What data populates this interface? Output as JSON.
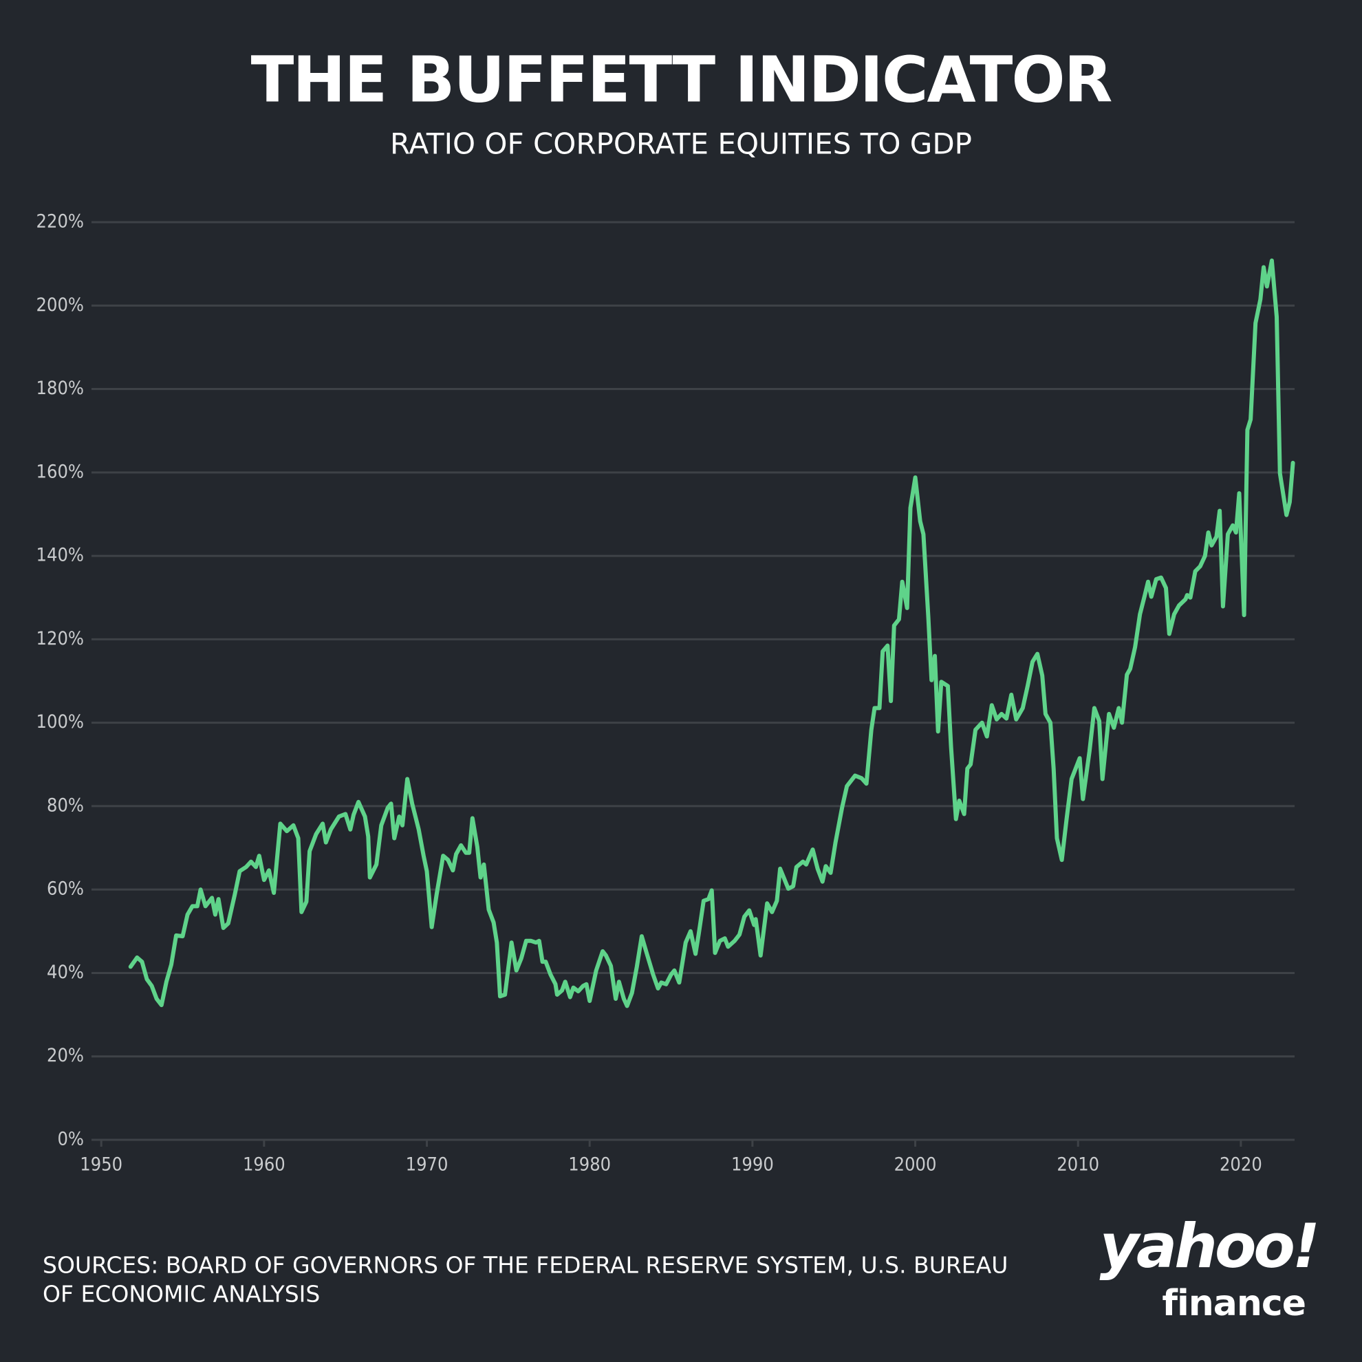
{
  "chart_data": {
    "type": "line",
    "title": "THE BUFFETT INDICATOR",
    "subtitle": "RATIO OF CORPORATE EQUITIES TO GDP",
    "source": [
      "SOURCES: BOARD OF GOVERNORS OF THE FEDERAL RESERVE SYSTEM, U.S. BUREAU",
      "OF ECONOMIC ANALYSIS"
    ],
    "logo": {
      "brand": "yahoo!",
      "product": "finance"
    },
    "xlim": [
      1949.4,
      2023.3
    ],
    "xticks": [
      1950,
      1960,
      1970,
      1980,
      1990,
      2000,
      2010,
      2020
    ],
    "ylim": [
      0,
      220
    ],
    "yticks": [
      {
        "value": 0,
        "label": "0%"
      },
      {
        "value": 20,
        "label": "20%"
      },
      {
        "value": 40,
        "label": "40%"
      },
      {
        "value": 60,
        "label": "60%"
      },
      {
        "value": 80,
        "label": "80%"
      },
      {
        "value": 100,
        "label": "100%"
      },
      {
        "value": 120,
        "label": "120%"
      },
      {
        "value": 140,
        "label": "140%"
      },
      {
        "value": 160,
        "label": "160%"
      },
      {
        "value": 180,
        "label": "180%"
      },
      {
        "value": 200,
        "label": "200%"
      },
      {
        "value": 220,
        "label": "220%"
      }
    ],
    "grid": true,
    "background": "#23272d",
    "grid_color": "#3e4247",
    "x": [
      1951.8,
      1952.2,
      1952.5,
      1952.8,
      1953.1,
      1953.4,
      1953.7,
      1954,
      1954.3,
      1954.6,
      1955,
      1955.3,
      1955.6,
      1955.9,
      1956.1,
      1956.4,
      1956.8,
      1957,
      1957.2,
      1957.5,
      1957.8,
      1958.2,
      1958.5,
      1958.9,
      1959.2,
      1959.5,
      1959.7,
      1960,
      1960.3,
      1960.6,
      1961,
      1961.4,
      1961.8,
      1962.1,
      1962.3,
      1962.6,
      1962.8,
      1963.2,
      1963.6,
      1963.8,
      1964.1,
      1964.6,
      1965,
      1965.3,
      1965.5,
      1965.8,
      1966.2,
      1966.4,
      1966.5,
      1966.9,
      1967.2,
      1967.6,
      1967.8,
      1968,
      1968.3,
      1968.5,
      1968.8,
      1969.1,
      1969.5,
      1969.8,
      1970,
      1970.3,
      1970.6,
      1971,
      1971.3,
      1971.6,
      1971.8,
      1972.1,
      1972.4,
      1972.6,
      1972.8,
      1973.1,
      1973.3,
      1973.5,
      1973.8,
      1974.1,
      1974.3,
      1974.5,
      1974.8,
      1975.2,
      1975.5,
      1975.8,
      1976.1,
      1976.4,
      1976.7,
      1976.9,
      1977.1,
      1977.3,
      1977.6,
      1977.9,
      1978,
      1978.3,
      1978.5,
      1978.8,
      1979,
      1979.3,
      1979.6,
      1979.8,
      1980,
      1980.4,
      1980.8,
      1981,
      1981.3,
      1981.6,
      1981.8,
      1982.1,
      1982.3,
      1982.6,
      1982.9,
      1983.2,
      1983.5,
      1983.9,
      1984.2,
      1984.4,
      1984.7,
      1985,
      1985.2,
      1985.5,
      1985.9,
      1986.2,
      1986.5,
      1986.7,
      1987,
      1987.3,
      1987.5,
      1987.7,
      1988,
      1988.3,
      1988.5,
      1988.9,
      1989.2,
      1989.5,
      1989.8,
      1990.1,
      1990.2,
      1990.5,
      1990.9,
      1991.2,
      1991.5,
      1991.7,
      1992.2,
      1992.5,
      1992.7,
      1993.1,
      1993.3,
      1993.7,
      1994,
      1994.3,
      1994.5,
      1994.8,
      1995.1,
      1995.5,
      1995.8,
      1996.3,
      1996.7,
      1997,
      1997.3,
      1997.5,
      1997.8,
      1998,
      1998.3,
      1998.5,
      1998.7,
      1999,
      1999.2,
      1999.5,
      1999.7,
      2000,
      2000.3,
      2000.5,
      2000.8,
      2001,
      2001.2,
      2001.4,
      2001.6,
      2002,
      2002.2,
      2002.5,
      2002.7,
      2003,
      2003.2,
      2003.4,
      2003.7,
      2004.1,
      2004.4,
      2004.7,
      2005,
      2005.3,
      2005.6,
      2005.9,
      2006.2,
      2006.6,
      2006.9,
      2007.2,
      2007.5,
      2007.8,
      2008,
      2008.3,
      2008.5,
      2008.7,
      2009,
      2009.3,
      2009.6,
      2010.1,
      2010.3,
      2010.7,
      2011,
      2011.3,
      2011.5,
      2011.9,
      2012.2,
      2012.5,
      2012.7,
      2013,
      2013.2,
      2013.5,
      2013.8,
      2014.1,
      2014.3,
      2014.5,
      2014.8,
      2015.1,
      2015.4,
      2015.6,
      2015.9,
      2016.2,
      2016.6,
      2016.7,
      2016.9,
      2017.2,
      2017.5,
      2017.8,
      2018,
      2018.2,
      2018.5,
      2018.7,
      2018.9,
      2019.2,
      2019.5,
      2019.7,
      2019.9,
      2020.2,
      2020.4,
      2020.6,
      2020.9,
      2021.2,
      2021.4,
      2021.6,
      2021.9,
      2022.2,
      2022.4,
      2022.8,
      2023,
      2023.2
    ],
    "series": [
      {
        "name": "Ratio of corporate equities to GDP",
        "color": "#5fd38a",
        "values": [
          41.5,
          43.7,
          42.7,
          38.5,
          36.9,
          33.8,
          32.3,
          37.9,
          42,
          49,
          48.8,
          54,
          56,
          56,
          60,
          56,
          58,
          54,
          57.7,
          50.8,
          51.9,
          58.8,
          64.4,
          65.4,
          66.7,
          65.4,
          68.1,
          62.3,
          64.6,
          59.2,
          75.8,
          74,
          75.4,
          72.3,
          54.6,
          57.1,
          69.2,
          73.3,
          75.8,
          71.3,
          74.4,
          77.5,
          78.1,
          74.4,
          77.9,
          81,
          77.5,
          72.7,
          62.9,
          66,
          75.4,
          79.6,
          80.6,
          72.3,
          77.5,
          75.4,
          86.5,
          80.6,
          74.4,
          68.1,
          64.4,
          51,
          58.8,
          68.1,
          67.1,
          64.6,
          68.5,
          70.6,
          68.8,
          68.8,
          77.1,
          70.2,
          62.9,
          66,
          55.2,
          52.1,
          47.3,
          34.4,
          34.8,
          47.3,
          40.6,
          43.5,
          47.7,
          47.7,
          47.3,
          47.7,
          42.7,
          42.7,
          39.6,
          37.3,
          34.8,
          35.8,
          37.9,
          34.2,
          36.5,
          35.6,
          36.9,
          37.3,
          33.3,
          40.6,
          45.2,
          44.2,
          41.7,
          33.8,
          37.9,
          33.8,
          32.1,
          35.2,
          41.5,
          48.8,
          44.8,
          39.6,
          36.3,
          37.7,
          37.3,
          39.6,
          40.6,
          37.7,
          47.3,
          50,
          44.6,
          49.4,
          57.3,
          57.7,
          59.8,
          44.8,
          47.7,
          48.3,
          46.3,
          47.7,
          49.2,
          53.5,
          55,
          51.5,
          52.9,
          44.2,
          56.7,
          54.6,
          57.3,
          65,
          60.2,
          60.8,
          65.4,
          66.7,
          66,
          69.6,
          65,
          61.9,
          65.6,
          64,
          71.3,
          79.6,
          84.8,
          87.3,
          86.7,
          85.4,
          98.3,
          103.5,
          103.5,
          117.1,
          118.5,
          105.2,
          123.3,
          124.8,
          133.8,
          127.5,
          151.5,
          158.8,
          148.3,
          145.2,
          125.4,
          110.2,
          116,
          97.9,
          109.8,
          108.8,
          94.2,
          76.9,
          81.3,
          78.1,
          89,
          90,
          98.3,
          100,
          96.7,
          104.2,
          100.8,
          102.1,
          101,
          106.7,
          100.8,
          103.5,
          108.8,
          114.6,
          116.5,
          111.3,
          102.1,
          100,
          89,
          72.3,
          67.1,
          77.1,
          86.5,
          91.5,
          81.7,
          93.1,
          103.5,
          100.4,
          86.5,
          102.1,
          98.8,
          103.5,
          100,
          111.5,
          112.9,
          118.1,
          126,
          130.6,
          133.8,
          130.2,
          134.4,
          134.8,
          132.3,
          121.3,
          126,
          128.1,
          129.6,
          130.6,
          130,
          136.3,
          137.5,
          140,
          145.6,
          142.5,
          144.6,
          150.8,
          127.9,
          145.2,
          147.3,
          145.6,
          155,
          125.8,
          170.2,
          172.7,
          195.8,
          201.5,
          209.2,
          204.6,
          210.8,
          197.3,
          159.8,
          149.8,
          152.9,
          162.3
        ]
      }
    ]
  }
}
